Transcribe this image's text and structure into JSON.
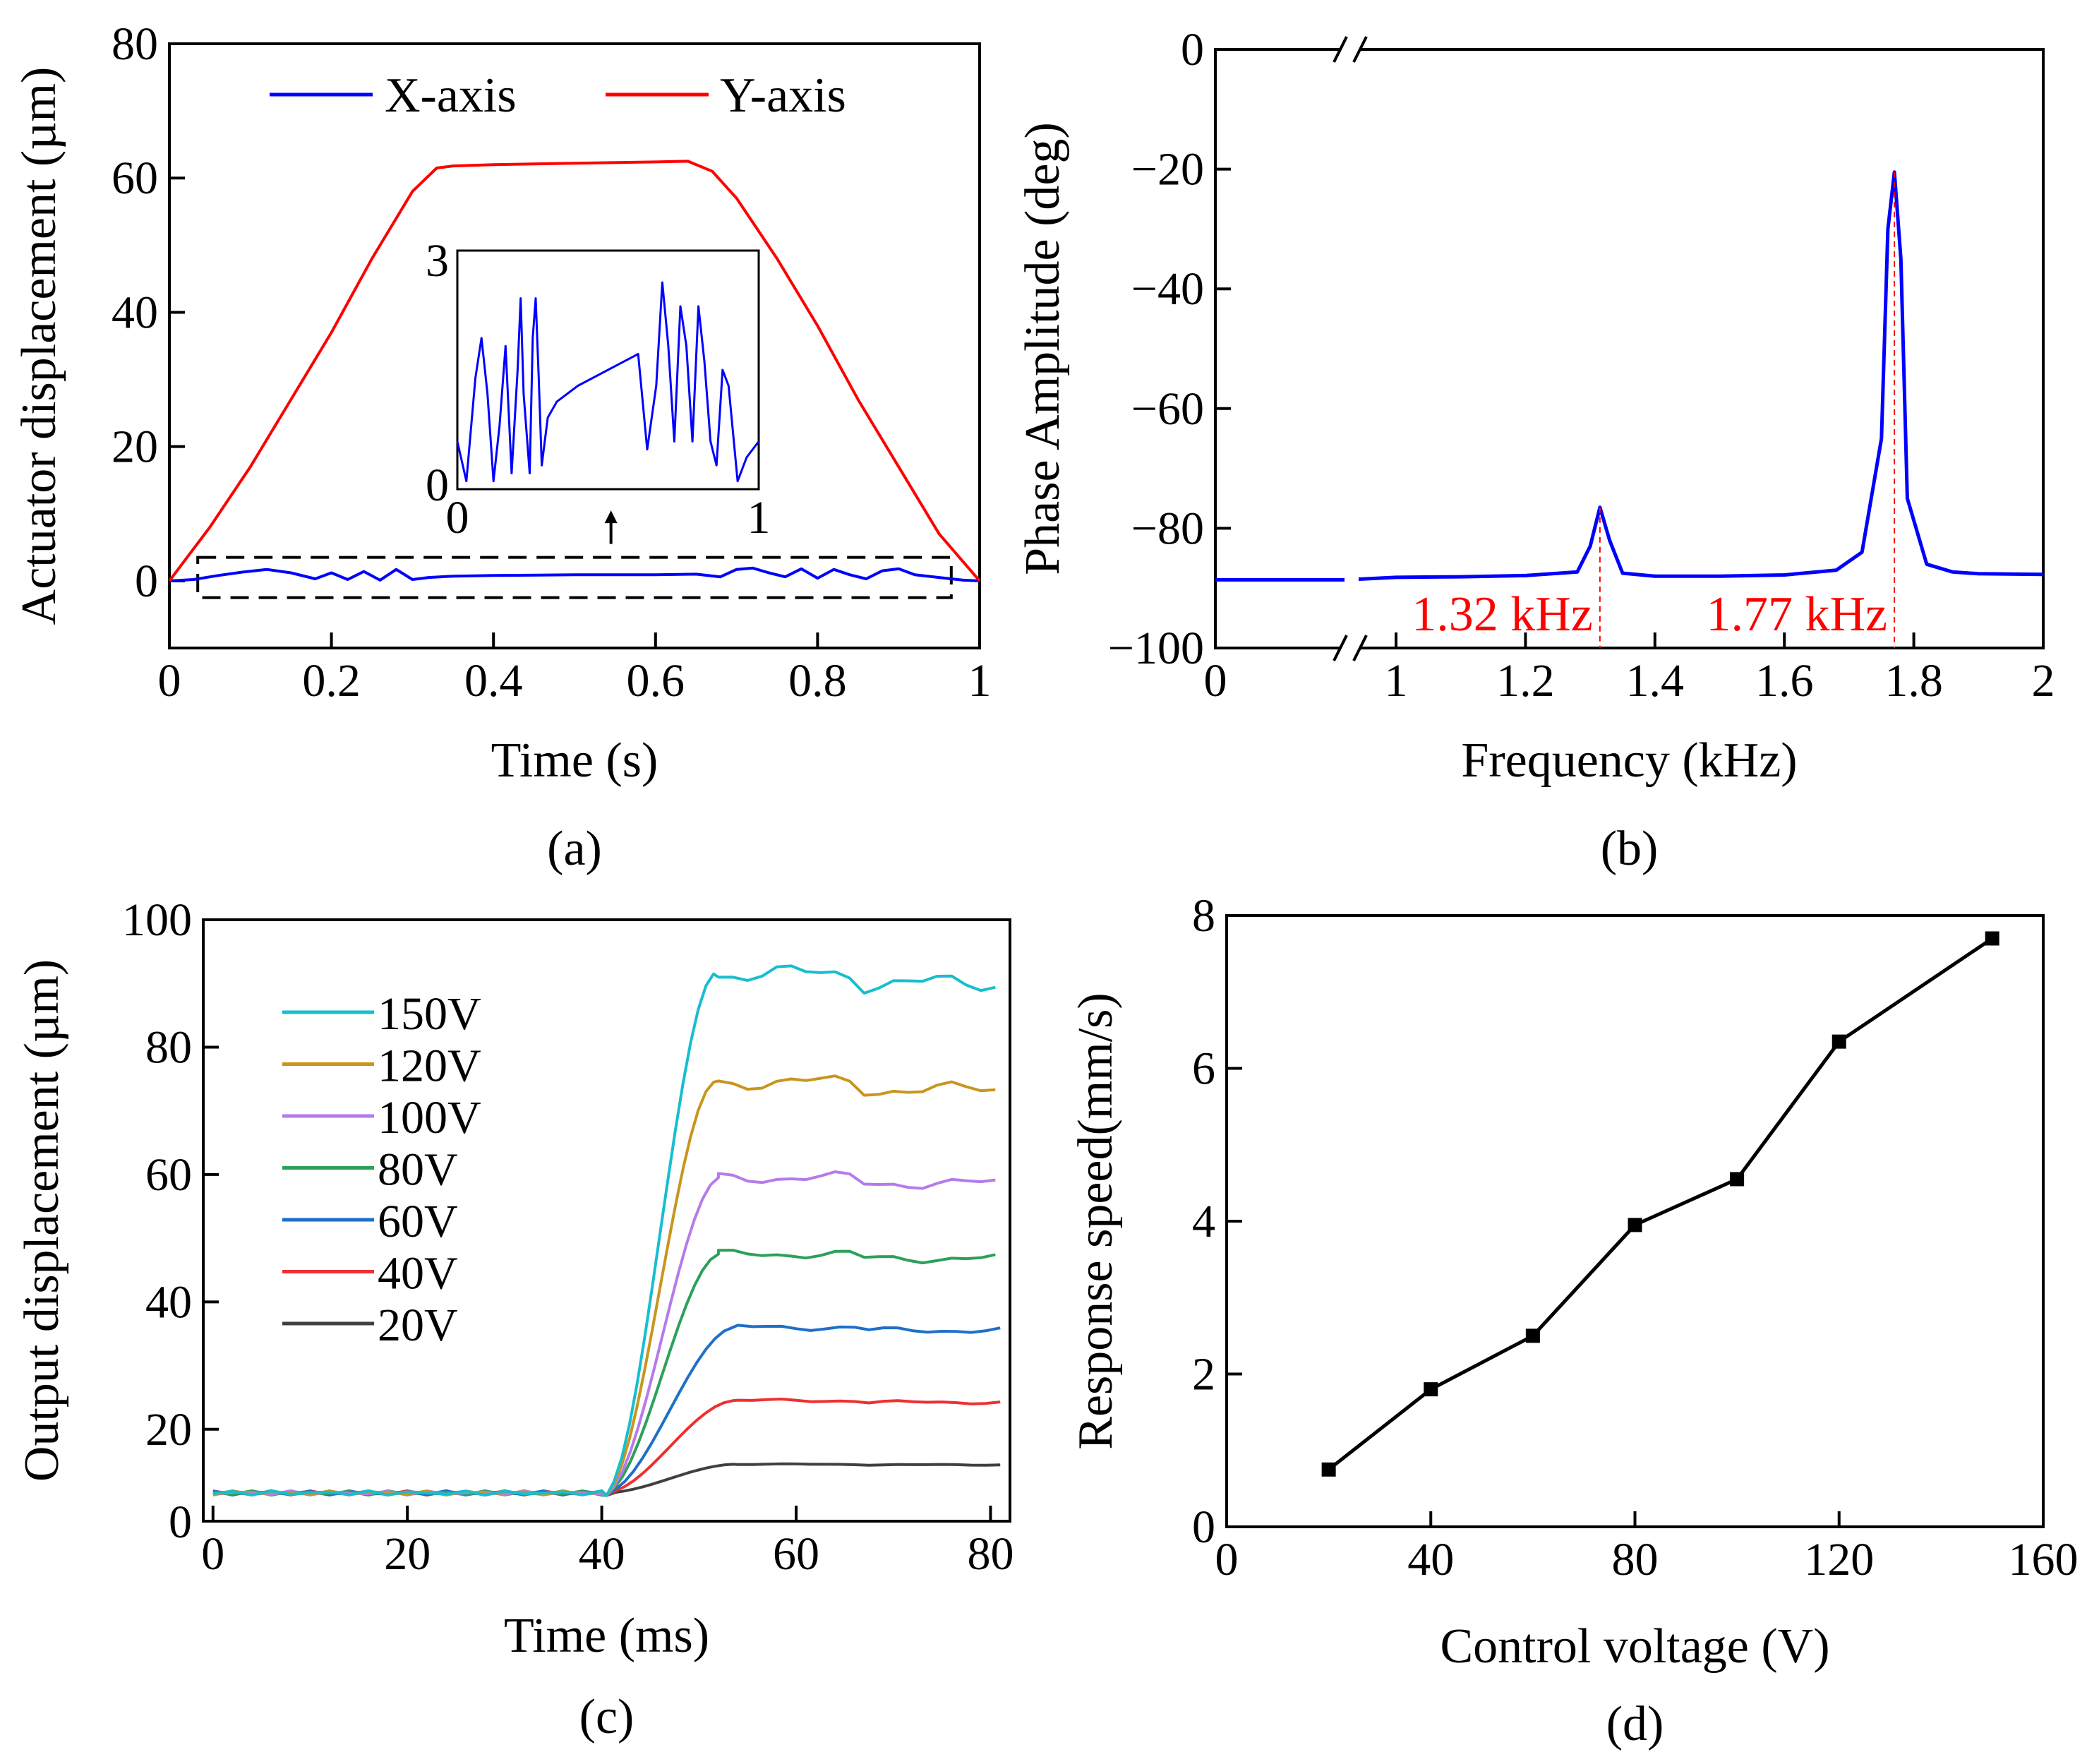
{
  "chart_data": [
    {
      "id": "a",
      "type": "line",
      "caption": "(a)",
      "xlabel": "Time (s)",
      "ylabel": "Actuator displacement (µm)",
      "xlim": [
        0,
        1
      ],
      "ylim": [
        -10,
        80
      ],
      "xticks": [
        "0",
        "0.2",
        "0.4",
        "0.6",
        "0.8",
        "1"
      ],
      "yticks": [
        "0",
        "20",
        "40",
        "60",
        "80"
      ],
      "legend": [
        "X-axis",
        "Y-axis"
      ],
      "series": [
        {
          "name": "X-axis",
          "color": "#0000ff",
          "x": [
            0,
            0.03,
            0.06,
            0.09,
            0.12,
            0.15,
            0.18,
            0.2,
            0.22,
            0.24,
            0.26,
            0.28,
            0.3,
            0.32,
            0.35,
            0.4,
            0.5,
            0.6,
            0.65,
            0.68,
            0.7,
            0.72,
            0.74,
            0.76,
            0.78,
            0.8,
            0.82,
            0.84,
            0.86,
            0.88,
            0.9,
            0.92,
            0.95,
            0.98,
            1.0
          ],
          "y": [
            0,
            0.2,
            0.8,
            1.3,
            1.7,
            1.2,
            0.3,
            1.2,
            0.2,
            1.4,
            0.1,
            1.7,
            0.2,
            0.5,
            0.7,
            0.8,
            0.9,
            0.9,
            1.0,
            0.6,
            1.7,
            1.9,
            1.2,
            0.6,
            1.8,
            0.4,
            1.7,
            0.9,
            0.3,
            1.5,
            1.8,
            0.9,
            0.5,
            0.1,
            0
          ]
        },
        {
          "name": "Y-axis",
          "color": "#ff0000",
          "x": [
            0,
            0.05,
            0.1,
            0.15,
            0.2,
            0.25,
            0.3,
            0.33,
            0.35,
            0.4,
            0.5,
            0.6,
            0.64,
            0.67,
            0.7,
            0.75,
            0.8,
            0.85,
            0.9,
            0.95,
            1.0
          ],
          "y": [
            0,
            8,
            17,
            27,
            37,
            48,
            58,
            61.5,
            61.8,
            62,
            62.2,
            62.4,
            62.5,
            61,
            57,
            48,
            38,
            27,
            17,
            7,
            0
          ]
        }
      ],
      "inset": {
        "xlim": [
          0,
          1
        ],
        "ylim": [
          0,
          3
        ],
        "xticks": [
          "0",
          "1"
        ],
        "yticks": [
          "0",
          "3"
        ],
        "color": "#0000ff",
        "x": [
          0,
          0.03,
          0.06,
          0.08,
          0.1,
          0.12,
          0.14,
          0.16,
          0.18,
          0.2,
          0.21,
          0.22,
          0.24,
          0.25,
          0.26,
          0.27,
          0.28,
          0.3,
          0.33,
          0.4,
          0.5,
          0.6,
          0.63,
          0.66,
          0.68,
          0.7,
          0.72,
          0.74,
          0.76,
          0.78,
          0.8,
          0.82,
          0.84,
          0.86,
          0.88,
          0.9,
          0.93,
          0.96,
          1.0
        ],
        "y": [
          0.6,
          0.1,
          1.4,
          1.9,
          1.2,
          0.1,
          0.8,
          1.8,
          0.2,
          1.5,
          2.4,
          1.2,
          0.2,
          1.9,
          2.4,
          1.4,
          0.3,
          0.9,
          1.1,
          1.3,
          1.5,
          1.7,
          0.5,
          1.3,
          2.6,
          1.8,
          0.6,
          2.3,
          1.8,
          0.6,
          2.3,
          1.6,
          0.6,
          0.3,
          1.5,
          1.3,
          0.1,
          0.4,
          0.6
        ]
      }
    },
    {
      "id": "b",
      "type": "line",
      "caption": "(b)",
      "xlabel": "Frequency (kHz)",
      "ylabel": "Phase Amplitude (deg)",
      "xlim": [
        0,
        2
      ],
      "ylim": [
        -100,
        0
      ],
      "xticks": [
        "0",
        "1",
        "1.2",
        "1.4",
        "1.6",
        "1.8",
        "2"
      ],
      "yticks": [
        "0",
        "−20",
        "−40",
        "−60",
        "−80",
        "−100"
      ],
      "axis_break": "between 0 and 1 kHz",
      "annotations": [
        "1.32 kHz",
        "1.77 kHz"
      ],
      "series": [
        {
          "name": "phase",
          "color": "#0000ff",
          "x": [
            0.75,
            0.8,
            0.9,
            1.0,
            1.1,
            1.2,
            1.28,
            1.3,
            1.315,
            1.33,
            1.35,
            1.4,
            1.5,
            1.6,
            1.68,
            1.72,
            1.75,
            1.76,
            1.77,
            1.78,
            1.79,
            1.82,
            1.86,
            1.9,
            2.0
          ],
          "y": [
            -88.5,
            -88.4,
            -88.3,
            -88.2,
            -88.1,
            -87.9,
            -87.3,
            -83,
            -76.5,
            -82,
            -87.5,
            -88,
            -88,
            -87.8,
            -87,
            -84,
            -65,
            -30,
            -20.5,
            -35,
            -75,
            -86,
            -87.3,
            -87.6,
            -87.7
          ]
        }
      ]
    },
    {
      "id": "c",
      "type": "line",
      "caption": "(c)",
      "xlabel": "Time (ms)",
      "ylabel": "Output displacement (µm)",
      "xlim": [
        -1,
        82
      ],
      "ylim": [
        0,
        100
      ],
      "xticks": [
        "0",
        "20",
        "40",
        "60",
        "80"
      ],
      "yticks": [
        "20",
        "40",
        "60",
        "80",
        "100"
      ],
      "legend": [
        "150V",
        "120V",
        "100V",
        "80V",
        "60V",
        "40V",
        "20V"
      ],
      "series": [
        {
          "name": "150V",
          "color": "#17becf",
          "plateau": 91.5
        },
        {
          "name": "120V",
          "color": "#c8961e",
          "plateau": 74.5
        },
        {
          "name": "100V",
          "color": "#b57bea",
          "plateau": 59.5
        },
        {
          "name": "80V",
          "color": "#2ca05a",
          "plateau": 47.5
        },
        {
          "name": "60V",
          "color": "#1f6fc8",
          "plateau": 36
        },
        {
          "name": "40V",
          "color": "#ee3030",
          "plateau": 24.5
        },
        {
          "name": "20V",
          "color": "#404040",
          "plateau": 14.5
        }
      ]
    },
    {
      "id": "d",
      "type": "line",
      "caption": "(d)",
      "xlabel": "Control voltage (V)",
      "ylabel": "Response speed(mm/s)",
      "xlim": [
        0,
        160
      ],
      "ylim": [
        0,
        8
      ],
      "xticks": [
        "0",
        "40",
        "80",
        "120",
        "160"
      ],
      "yticks": [
        "0",
        "2",
        "4",
        "6",
        "8"
      ],
      "series": [
        {
          "name": "speed",
          "color": "#000000",
          "x": [
            20,
            40,
            60,
            80,
            100,
            120,
            150
          ],
          "y": [
            0.75,
            1.8,
            2.5,
            3.95,
            4.55,
            6.35,
            7.7
          ]
        }
      ]
    }
  ]
}
